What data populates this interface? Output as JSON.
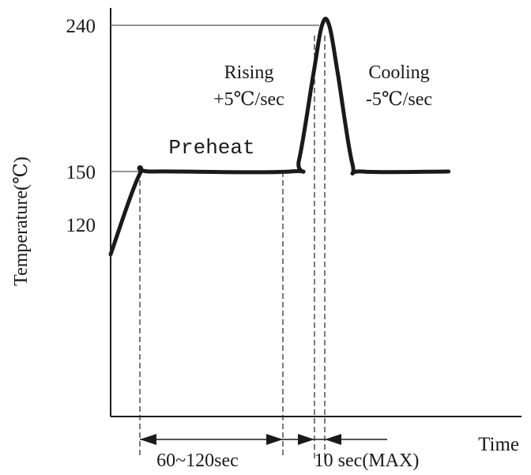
{
  "chart_data": {
    "type": "line",
    "title": "",
    "xlabel": "Time",
    "ylabel": "Temperature(℃)",
    "yticks": [
      "120",
      "150",
      "240"
    ],
    "series": [
      {
        "values": [
          {
            "x": 0,
            "y": 99
          },
          {
            "x": 20,
            "y": 148
          },
          {
            "x": 30,
            "y": 150
          },
          {
            "x": 125,
            "y": 150
          },
          {
            "x": 131,
            "y": 157
          },
          {
            "x": 141,
            "y": 210
          },
          {
            "x": 147,
            "y": 240
          },
          {
            "x": 152,
            "y": 240
          },
          {
            "x": 158,
            "y": 210
          },
          {
            "x": 168,
            "y": 155
          },
          {
            "x": 175,
            "y": 150
          },
          {
            "x": 235,
            "y": 150
          }
        ]
      }
    ],
    "phases": {
      "preheat": "Preheat",
      "rising_title": "Rising",
      "rising_rate": "+5℃/sec",
      "cooling_title": "Cooling",
      "cooling_rate": "-5℃/sec"
    },
    "durations": {
      "preheat": "60~120sec",
      "peak": "10 sec(MAX)"
    }
  }
}
